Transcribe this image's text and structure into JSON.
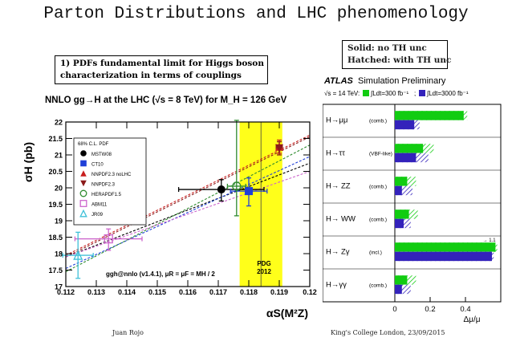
{
  "slide": {
    "title": "Parton Distributions and LHC phenomenology",
    "subtitle_box": [
      "1) PDFs fundamental limit for Higgs boson",
      "characterization in terms of couplings"
    ],
    "legend_box": [
      "Solid: no TH unc",
      "Hatched: with TH unc"
    ],
    "footer_left": "Juan Rojo",
    "footer_right": "King's College London, 23/09/2015"
  },
  "chart_data": [
    {
      "type": "scatter",
      "title": "NNLO gg→H at the LHC (√s = 8 TeV) for M_H = 126 GeV",
      "xlabel": "αS(M²Z)",
      "ylabel": "σH (pb)",
      "xlim": [
        0.112,
        0.12
      ],
      "ylim": [
        17,
        22
      ],
      "x_ticks": [
        "0.112",
        "0.113",
        "0.114",
        "0.115",
        "0.116",
        "0.117",
        "0.118",
        "0.119",
        "0.12"
      ],
      "y_ticks": [
        "17",
        "17.5",
        "18",
        "18.5",
        "19",
        "19.5",
        "20",
        "20.5",
        "21",
        "21.5",
        "22"
      ],
      "legend_title": "68% C.L. PDF",
      "band_label": [
        "PDG",
        "2012"
      ],
      "band": [
        0.1177,
        0.1191
      ],
      "footnote": "ggh@nnlo (v1.4.1), μR = μF = MH / 2",
      "series": [
        {
          "name": "MSTW08",
          "color": "#000000",
          "marker": "circle",
          "x": 0.1171,
          "y": 19.95,
          "xerr": 0.0014,
          "yerr_lo": 0.35,
          "yerr_hi": 0.3,
          "line": [
            [
              0.112,
              17.9
            ],
            [
              0.12,
              20.75
            ]
          ]
        },
        {
          "name": "CT10",
          "color": "#1f3fd8",
          "marker": "square",
          "x": 0.118,
          "y": 19.9,
          "xerr": 0.0006,
          "yerr_lo": 0.45,
          "yerr_hi": 0.4,
          "line": [
            [
              0.112,
              17.55
            ],
            [
              0.12,
              20.95
            ]
          ]
        },
        {
          "name": "NNPDF2.3 noLHC",
          "color": "#c81e1e",
          "marker": "triangle-up",
          "x": 0.119,
          "y": 21.25,
          "xerr": 0.0001,
          "yerr_lo": 0.2,
          "yerr_hi": 0.2,
          "line": [
            [
              0.112,
              17.95
            ],
            [
              0.12,
              21.6
            ]
          ]
        },
        {
          "name": "NNPDF2.3",
          "color": "#8b1a1a",
          "marker": "triangle-down",
          "x": 0.119,
          "y": 21.2,
          "xerr": 0.0001,
          "yerr_lo": 0.2,
          "yerr_hi": 0.2,
          "line": [
            [
              0.112,
              17.9
            ],
            [
              0.12,
              21.55
            ]
          ]
        },
        {
          "name": "HERAPDF1.5",
          "color": "#2e8b2e",
          "marker": "circle-open",
          "x": 0.1176,
          "y": 20.05,
          "xerr": 0.0003,
          "yerr_lo": 0.9,
          "yerr_hi": 2.0,
          "line": [
            [
              0.112,
              17.45
            ],
            [
              0.12,
              21.3
            ]
          ]
        },
        {
          "name": "ABM11",
          "color": "#cc66cc",
          "marker": "square-open",
          "x": 0.1134,
          "y": 18.45,
          "xerr": 0.0011,
          "yerr_lo": 0.35,
          "yerr_hi": 0.3,
          "line": [
            [
              0.112,
              17.9
            ],
            [
              0.12,
              20.5
            ]
          ]
        },
        {
          "name": "JR09",
          "color": "#40c0d8",
          "marker": "triangle-open",
          "x": 0.1124,
          "y": 17.95,
          "xerr": 0.0005,
          "yerr_lo": 0.7,
          "yerr_hi": 0.7,
          "line": null
        }
      ]
    },
    {
      "type": "bar",
      "header": [
        "ATLAS",
        "Simulation Preliminary"
      ],
      "energy_line": "√s = 14 TeV:",
      "lumi_300": "∫Ldt=300 fb⁻¹",
      "lumi_3000": "∫Ldt=3000 fb⁻¹",
      "lumi_sep": ";",
      "xlabel": "Δμ/μ",
      "xlim": [
        0,
        0.6
      ],
      "x_ticks": [
        "0",
        "0.2",
        "0.4"
      ],
      "colors": {
        "lumi_300": "#11cc11",
        "lumi_3000": "#3322bb"
      },
      "categories": [
        {
          "channel": "H→μμ",
          "mode": "(comb.)",
          "v300": 0.39,
          "v300_th": 0.41,
          "v3000": 0.11,
          "v3000_th": 0.14
        },
        {
          "channel": "H→ττ",
          "mode": "(VBF-like)",
          "v300": 0.16,
          "v300_th": 0.22,
          "v3000": 0.12,
          "v3000_th": 0.19
        },
        {
          "channel": "H→ ZZ",
          "mode": "(comb.)",
          "v300": 0.07,
          "v300_th": 0.12,
          "v3000": 0.04,
          "v3000_th": 0.1
        },
        {
          "channel": "H→ WW",
          "mode": "(comb.)",
          "v300": 0.08,
          "v300_th": 0.13,
          "v3000": 0.05,
          "v3000_th": 0.09
        },
        {
          "channel": "H→ Zγ",
          "mode": "(incl.)",
          "v300": 0.57,
          "v300_th": 0.58,
          "v3000": 0.55,
          "v3000_th": 0.56,
          "arrow_label": "→ 1.1"
        },
        {
          "channel": "H→γγ",
          "mode": "(comb.)",
          "v300": 0.07,
          "v300_th": 0.12,
          "v3000": 0.04,
          "v3000_th": 0.09
        }
      ]
    }
  ]
}
